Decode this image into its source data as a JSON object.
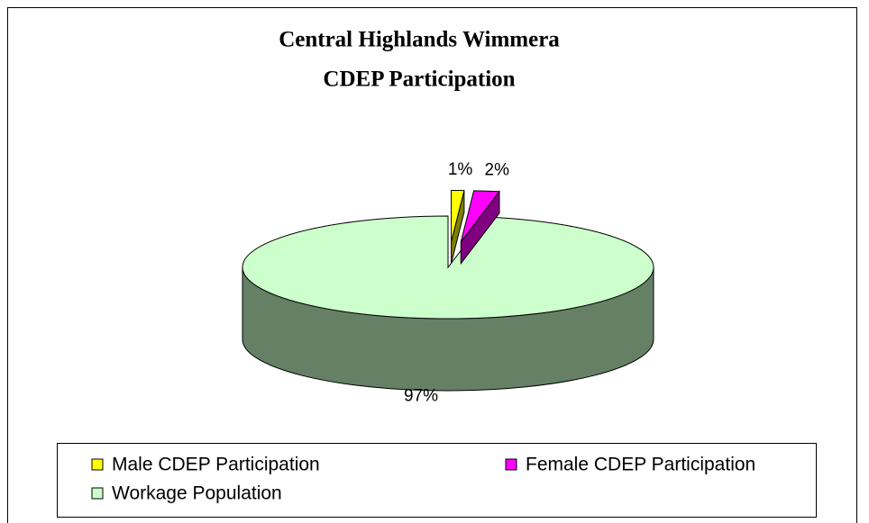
{
  "chart_data": {
    "type": "pie",
    "title": [
      "Central Highlands Wimmera",
      "CDEP Participation"
    ],
    "categories": [
      "Male CDEP Participation",
      "Female CDEP Participation",
      "Workage Population"
    ],
    "values": [
      1,
      2,
      97
    ],
    "value_labels": [
      "1%",
      "2%",
      "97%"
    ],
    "colors": [
      "#ffff00",
      "#ff00ff",
      "#ccffcc"
    ],
    "side_colors": [
      "#808000",
      "#800080",
      "#668066"
    ],
    "exploded": [
      true,
      true,
      false
    ],
    "legend": "bottom"
  }
}
